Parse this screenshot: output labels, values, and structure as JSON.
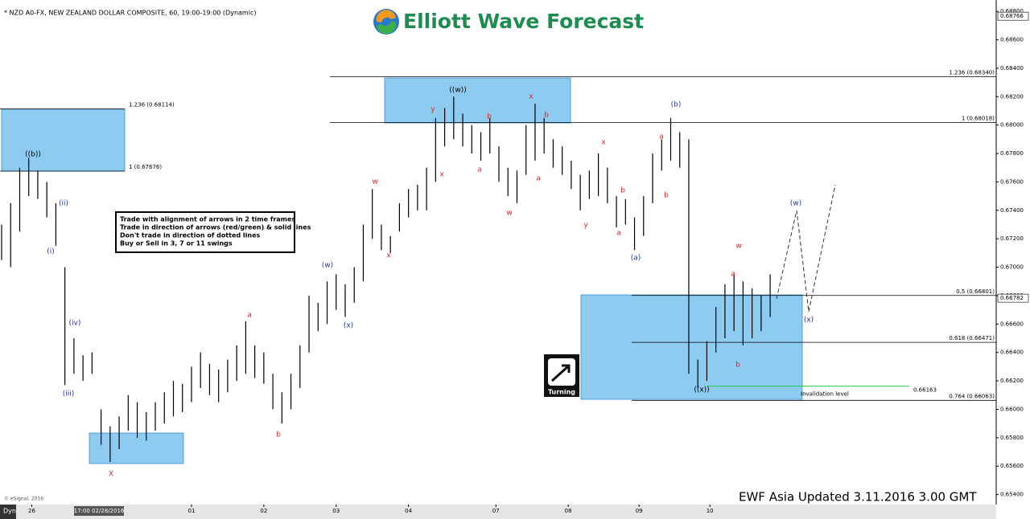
{
  "header": "* NZD A0-FX, NEW ZEALAND DOLLAR COMPOSITE, 60, 19:00-19:00 (Dynamic)",
  "logo": "Elliott Wave Forecast",
  "rules": [
    "Trade with alignment of arrows in 2 time frames",
    "Trade in direction of arrows (red/green) & solid lines",
    "Don't trade in direction of dotted lines",
    "Buy or Sell in 3, 7 or 11 swings"
  ],
  "turning_icon": "Turning",
  "footer": "EWF Asia Updated 3.11.2016 3.00 GMT",
  "copyright": "© eSignal, 2016",
  "chart_data": {
    "type": "hilo",
    "x": [
      0,
      3,
      6,
      9,
      12,
      15,
      18,
      21,
      24,
      27,
      30,
      33,
      36,
      39,
      42,
      45,
      48,
      51,
      54,
      57,
      60,
      63,
      66,
      69,
      72,
      75,
      78,
      81,
      84,
      87,
      90,
      93,
      96,
      99,
      102,
      105,
      108,
      111,
      114,
      117,
      120,
      123,
      126,
      129,
      132,
      135,
      138,
      141,
      144,
      147,
      150,
      153,
      156,
      159,
      162,
      165,
      168,
      171,
      174,
      177,
      180,
      183,
      186,
      189,
      192,
      195,
      198,
      201,
      204,
      207,
      210,
      213,
      216,
      219,
      222,
      225,
      228,
      231,
      234,
      237,
      240,
      243,
      246,
      249,
      252,
      255
    ],
    "high": [
      0.673,
      0.6745,
      0.677,
      0.6777,
      0.6768,
      0.676,
      0.6745,
      0.67,
      0.665,
      0.6638,
      0.664,
      0.66,
      0.6588,
      0.6595,
      0.661,
      0.6605,
      0.6598,
      0.6605,
      0.6612,
      0.662,
      0.6618,
      0.663,
      0.664,
      0.6632,
      0.6628,
      0.6635,
      0.6645,
      0.6662,
      0.6645,
      0.664,
      0.6625,
      0.6612,
      0.6625,
      0.6645,
      0.668,
      0.6675,
      0.669,
      0.6695,
      0.6688,
      0.67,
      0.673,
      0.6755,
      0.673,
      0.6722,
      0.6745,
      0.6755,
      0.6758,
      0.677,
      0.6805,
      0.6812,
      0.682,
      0.6808,
      0.68,
      0.6795,
      0.6805,
      0.6785,
      0.677,
      0.6768,
      0.68,
      0.6815,
      0.6805,
      0.679,
      0.6785,
      0.6775,
      0.6765,
      0.6768,
      0.678,
      0.677,
      0.675,
      0.6748,
      0.6735,
      0.675,
      0.678,
      0.679,
      0.6805,
      0.6795,
      0.679,
      0.6635,
      0.6648,
      0.6672,
      0.6688,
      0.6695,
      0.669,
      0.6685,
      0.668,
      0.6695
    ],
    "low": [
      0.6705,
      0.67,
      0.6725,
      0.675,
      0.6748,
      0.6735,
      0.6715,
      0.6617,
      0.6625,
      0.662,
      0.6625,
      0.6575,
      0.6563,
      0.6572,
      0.6585,
      0.658,
      0.6578,
      0.6585,
      0.659,
      0.6595,
      0.6598,
      0.6605,
      0.6615,
      0.661,
      0.6605,
      0.6612,
      0.662,
      0.6625,
      0.6622,
      0.6618,
      0.66,
      0.659,
      0.66,
      0.6615,
      0.664,
      0.6655,
      0.666,
      0.667,
      0.6665,
      0.6675,
      0.669,
      0.672,
      0.6712,
      0.671,
      0.6725,
      0.6735,
      0.674,
      0.674,
      0.676,
      0.6785,
      0.679,
      0.6785,
      0.678,
      0.6775,
      0.678,
      0.676,
      0.675,
      0.6745,
      0.6765,
      0.6775,
      0.678,
      0.677,
      0.6765,
      0.6755,
      0.674,
      0.6748,
      0.675,
      0.6745,
      0.6728,
      0.673,
      0.6712,
      0.6722,
      0.6745,
      0.6768,
      0.6775,
      0.677,
      0.6625,
      0.6615,
      0.662,
      0.664,
      0.665,
      0.6655,
      0.6645,
      0.665,
      0.6655,
      0.6665
    ],
    "color": "#000000",
    "xlim": [
      0,
      330
    ],
    "ylim": [
      0.6533,
      0.6888
    ],
    "yticks": [
      {
        "value": 0.688,
        "label": "0.68800"
      },
      {
        "value": 0.686,
        "label": "0.68600"
      },
      {
        "value": 0.684,
        "label": "0.68400"
      },
      {
        "value": 0.682,
        "label": "0.68200"
      },
      {
        "value": 0.68,
        "label": "0.68000"
      },
      {
        "value": 0.678,
        "label": "0.67800"
      },
      {
        "value": 0.676,
        "label": "0.67600"
      },
      {
        "value": 0.674,
        "label": "0.67400"
      },
      {
        "value": 0.672,
        "label": "0.67200"
      },
      {
        "value": 0.67,
        "label": "0.67000"
      },
      {
        "value": 0.668,
        "label": "0.66800"
      },
      {
        "value": 0.666,
        "label": "0.66600"
      },
      {
        "value": 0.664,
        "label": "0.66400"
      },
      {
        "value": 0.662,
        "label": "0.66200"
      },
      {
        "value": 0.66,
        "label": "0.66000"
      },
      {
        "value": 0.658,
        "label": "0.65800"
      },
      {
        "value": 0.656,
        "label": "0.65600"
      },
      {
        "value": 0.654,
        "label": "0.65400"
      }
    ],
    "xticks": [
      {
        "value": 10,
        "label": "26"
      },
      {
        "value": 63,
        "label": "01"
      },
      {
        "value": 87,
        "label": "02"
      },
      {
        "value": 111,
        "label": "03"
      },
      {
        "value": 135,
        "label": "04"
      },
      {
        "value": 164,
        "label": "07"
      },
      {
        "value": 188,
        "label": "08"
      },
      {
        "value": 211.5,
        "label": "09"
      },
      {
        "value": 235,
        "label": "10"
      }
    ],
    "axis_mode": "Dyn",
    "cursor_label": "17:00 02/28/2016",
    "price_markers": [
      0.68766,
      0.66782
    ],
    "fib_levels": [
      {
        "value": 0.68114,
        "label": "1.236 (0.68114)"
      },
      {
        "value": 0.67676,
        "label": "1 (0.67676)"
      },
      {
        "value": 0.6834,
        "label": "1.236 (0.68340)"
      },
      {
        "value": 0.68018,
        "label": "1 (0.68018)"
      },
      {
        "value": 0.66801,
        "label": "0.5 (0.66801)"
      },
      {
        "value": 0.66471,
        "label": "0.618 (0.66471)"
      },
      {
        "value": 0.66063,
        "label": "0.764 (0.66063)"
      }
    ],
    "invalidation": {
      "value": 0.66163,
      "text": "Invalidation level",
      "color": "#22cc44"
    },
    "wave_labels": [
      {
        "text": "((b))",
        "color": "#000000"
      },
      {
        "text": "(ii)",
        "color": "#2233aa"
      },
      {
        "text": "(i)",
        "color": "#2233aa"
      },
      {
        "text": "(iv)",
        "color": "#2233aa"
      },
      {
        "text": "(iii)",
        "color": "#2233aa"
      },
      {
        "text": "X",
        "color": "#e02020"
      },
      {
        "text": "a",
        "color": "#e02020"
      },
      {
        "text": "b",
        "color": "#e02020"
      },
      {
        "text": "(w)",
        "color": "#2233aa"
      },
      {
        "text": "(x)",
        "color": "#2233aa"
      },
      {
        "text": "w",
        "color": "#e02020"
      },
      {
        "text": "x",
        "color": "#e02020"
      },
      {
        "text": "y",
        "color": "#e02020"
      },
      {
        "text": "x",
        "color": "#e02020"
      },
      {
        "text": "((w))",
        "color": "#000000"
      },
      {
        "text": "b",
        "color": "#e02020"
      },
      {
        "text": "a",
        "color": "#e02020"
      },
      {
        "text": "w",
        "color": "#e02020"
      },
      {
        "text": "x",
        "color": "#e02020"
      },
      {
        "text": "b",
        "color": "#e02020"
      },
      {
        "text": "a",
        "color": "#e02020"
      },
      {
        "text": "x",
        "color": "#e02020"
      },
      {
        "text": "y",
        "color": "#e02020"
      },
      {
        "text": "b",
        "color": "#e02020"
      },
      {
        "text": "a",
        "color": "#e02020"
      },
      {
        "text": "(a)",
        "color": "#2233aa"
      },
      {
        "text": "a",
        "color": "#e02020"
      },
      {
        "text": "b",
        "color": "#e02020"
      },
      {
        "text": "(b)",
        "color": "#2233aa"
      },
      {
        "text": "((x))",
        "color": "#000000"
      },
      {
        "text": "a",
        "color": "#e02020"
      },
      {
        "text": "w",
        "color": "#e02020"
      },
      {
        "text": "b",
        "color": "#e02020"
      },
      {
        "text": "(w)",
        "color": "#2233aa"
      },
      {
        "text": "(x)",
        "color": "#2233aa"
      }
    ]
  }
}
